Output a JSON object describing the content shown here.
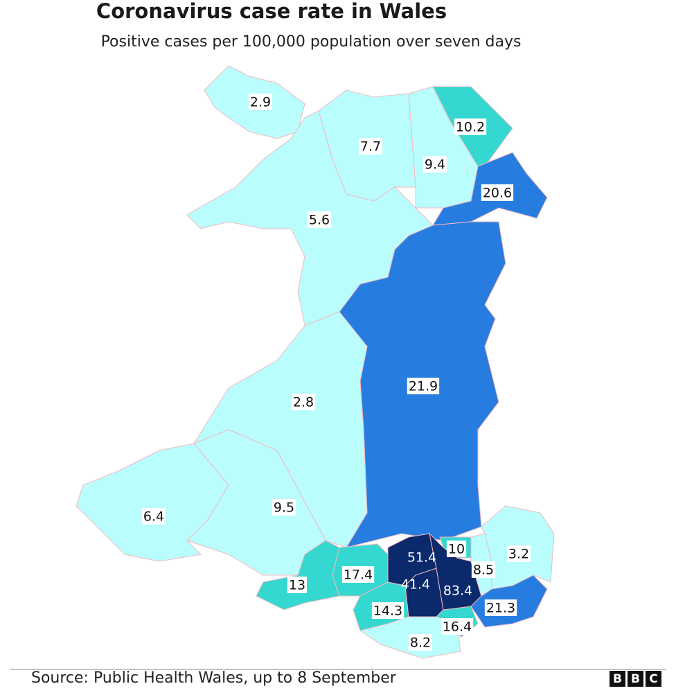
{
  "title": "Coronavirus case rate in Wales",
  "subtitle": "Positive cases per 100,000 population over seven days",
  "regions": [
    {
      "value": 2.9,
      "color": "#b9fdfd"
    },
    {
      "value": 7.7,
      "color": "#b9fdfd"
    },
    {
      "value": 9.4,
      "color": "#b9fdfd"
    },
    {
      "value": 10.2,
      "color": "#34d8d0"
    },
    {
      "value": 20.6,
      "color": "#277ddf"
    },
    {
      "value": 5.6,
      "color": "#b9fdfd"
    },
    {
      "value": 21.9,
      "color": "#277ddf"
    },
    {
      "value": 2.8,
      "color": "#b9fdfd"
    },
    {
      "value": 6.4,
      "color": "#b9fdfd"
    },
    {
      "value": 9.5,
      "color": "#b9fdfd"
    },
    {
      "value": 13,
      "color": "#34d8d0"
    },
    {
      "value": 17.4,
      "color": "#34d8d0"
    },
    {
      "value": 14.3,
      "color": "#34d8d0"
    },
    {
      "value": 8.2,
      "color": "#b9fdfd"
    },
    {
      "value": 16.4,
      "color": "#34d8d0"
    },
    {
      "value": 51.4,
      "color": "#0b2a6b"
    },
    {
      "value": 41.4,
      "color": "#0b2a6b"
    },
    {
      "value": 83.4,
      "color": "#0b2a6b"
    },
    {
      "value": 10,
      "color": "#34d8d0"
    },
    {
      "value": 8.5,
      "color": "#b9fdfd"
    },
    {
      "value": 3.2,
      "color": "#b9fdfd"
    },
    {
      "value": 21.3,
      "color": "#277ddf"
    }
  ],
  "source": "Source: Public Health Wales, up to 8 September",
  "logo": [
    "B",
    "B",
    "C"
  ]
}
